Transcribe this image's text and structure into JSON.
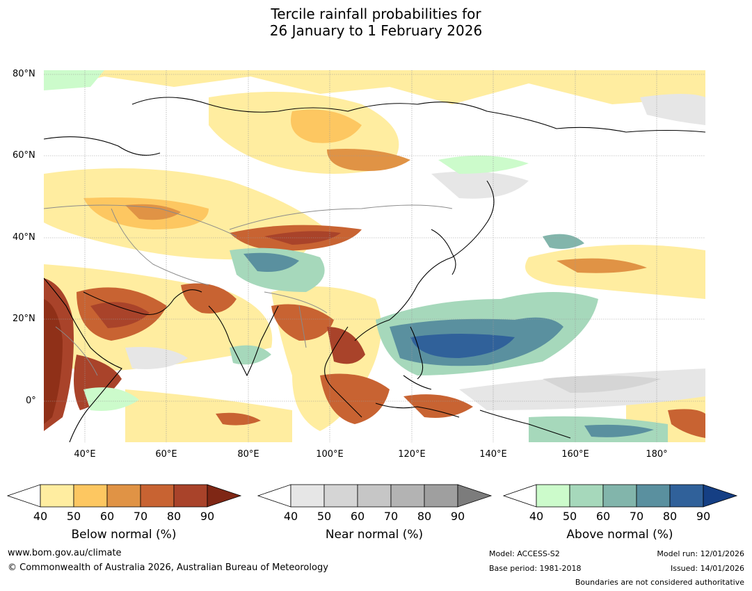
{
  "title": {
    "line1": "Tercile rainfall probabilities for",
    "line2": "26 January to 1 February 2026"
  },
  "map": {
    "lat_labels": [
      "80°N",
      "60°N",
      "40°N",
      "20°N",
      "0°"
    ],
    "lon_labels": [
      "40°E",
      "60°E",
      "80°E",
      "100°E",
      "120°E",
      "140°E",
      "160°E",
      "180°"
    ],
    "lon_range": [
      30,
      192
    ],
    "lat_range": [
      -10,
      81
    ],
    "colors": {
      "land_outline": "#000000",
      "border": "#8a8a8a",
      "grid": "#999999"
    }
  },
  "legend": {
    "ticks": [
      "40",
      "50",
      "60",
      "70",
      "80",
      "90"
    ],
    "below": {
      "label": "Below normal (%)",
      "colors": [
        "#ffeda0",
        "#fdc761",
        "#e09345",
        "#c86332",
        "#a9432a",
        "#7f2715"
      ]
    },
    "near": {
      "label": "Near normal (%)",
      "colors": [
        "#e6e6e6",
        "#d5d5d5",
        "#c6c6c6",
        "#b3b3b3",
        "#9f9f9f",
        "#7c7c7c"
      ]
    },
    "above": {
      "label": "Above normal (%)",
      "colors": [
        "#ccfbcb",
        "#a6d8bb",
        "#82b5ab",
        "#5a909f",
        "#30619a",
        "#153f84"
      ]
    }
  },
  "footer": {
    "website": "www.bom.gov.au/climate",
    "copyright": "© Commonwealth of Australia 2026, Australian Bureau of Meteorology",
    "model": "Model: ACCESS-S2",
    "base_period": "Base period: 1981-2018",
    "model_run": "Model run: 12/01/2026",
    "issued": "Issued: 14/01/2026",
    "disclaimer": "Boundaries are not considered authoritative"
  }
}
